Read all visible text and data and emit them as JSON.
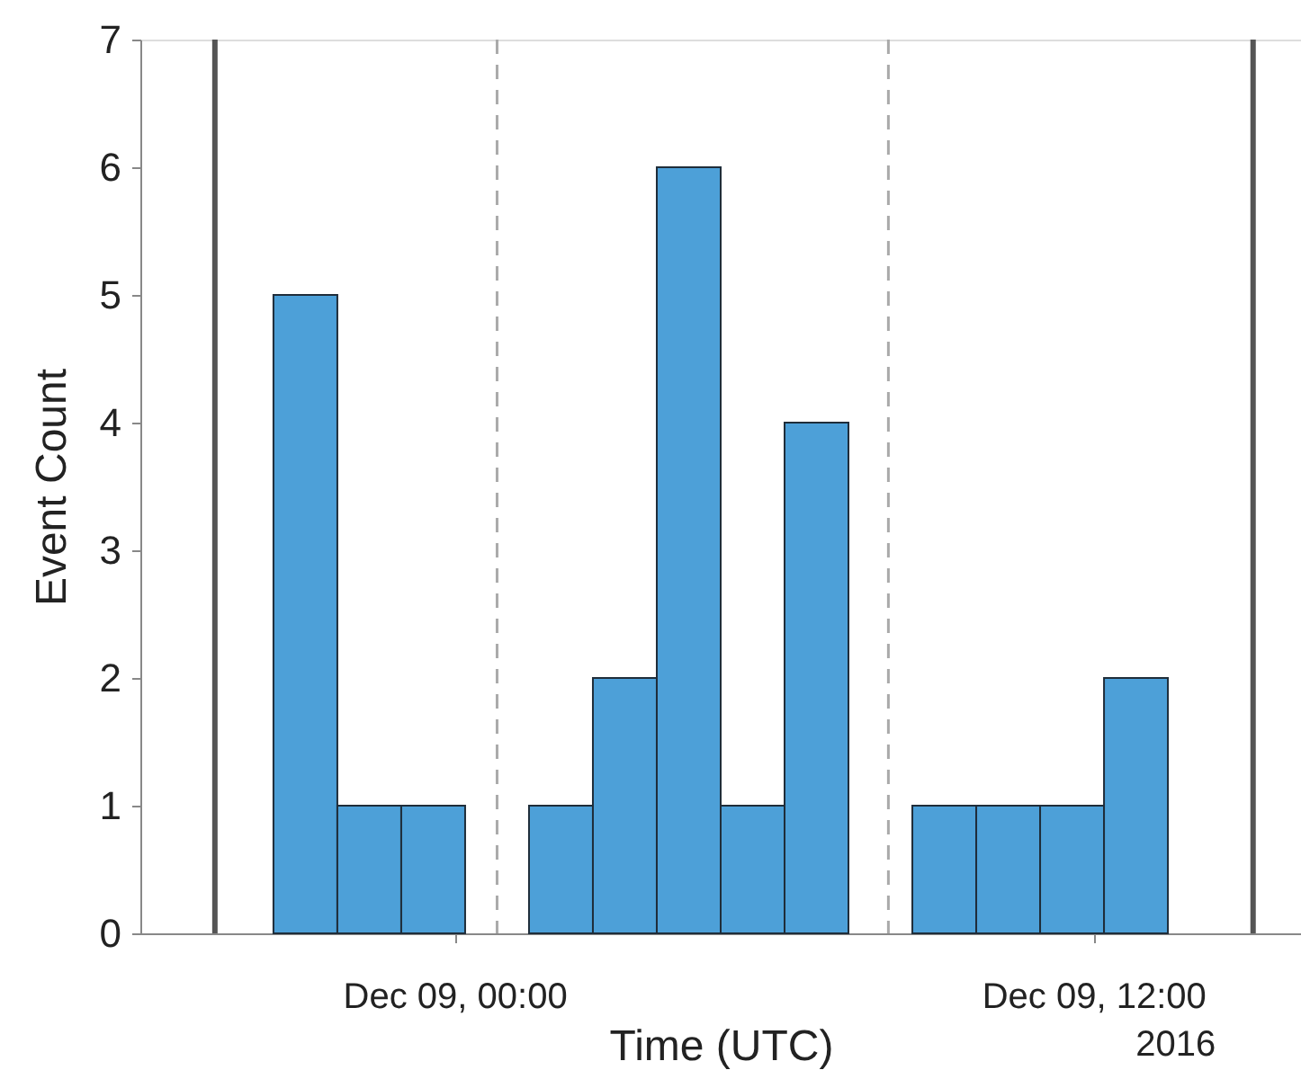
{
  "chart_data": {
    "type": "histogram",
    "xlabel": "Time (UTC)",
    "ylabel": "Event Count",
    "bins": [
      "2016-12-08T20:36",
      "2016-12-08T21:48",
      "2016-12-08T23:00",
      "2016-12-09T00:12",
      "2016-12-09T01:24",
      "2016-12-09T02:36",
      "2016-12-09T03:48",
      "2016-12-09T05:00",
      "2016-12-09T06:12",
      "2016-12-09T07:24",
      "2016-12-09T08:36",
      "2016-12-09T09:48",
      "2016-12-09T11:00",
      "2016-12-09T12:12",
      "2016-12-09T13:24"
    ],
    "values": [
      5,
      1,
      1,
      0,
      1,
      2,
      6,
      1,
      4,
      0,
      1,
      1,
      1,
      2
    ],
    "color": "#4da0d8",
    "xlim": [
      "2016-12-08T18:06",
      "2016-12-09T15:54"
    ],
    "xticks": [
      {
        "value": "2016-12-09T00:00",
        "label": "Dec 09, 00:00"
      },
      {
        "value": "2016-12-09T12:00",
        "label": "Dec 09, 12:00"
      }
    ],
    "ylim": [
      0,
      7
    ],
    "yticks": [
      0,
      1,
      2,
      3,
      4,
      5,
      6,
      7
    ],
    "grid": false,
    "ref_lines": [
      {
        "axis": "x",
        "value": "2016-12-08T19:30",
        "color": "#555555",
        "line_style": "solid"
      },
      {
        "axis": "x",
        "value": "2016-12-09T00:48",
        "color": "#aaaaaa",
        "line_style": "dashed"
      },
      {
        "axis": "x",
        "value": "2016-12-09T08:09",
        "color": "#aaaaaa",
        "line_style": "dashed"
      },
      {
        "axis": "x",
        "value": "2016-12-09T15:00",
        "color": "#555555",
        "line_style": "solid"
      }
    ],
    "annotations": [
      "2016"
    ]
  }
}
